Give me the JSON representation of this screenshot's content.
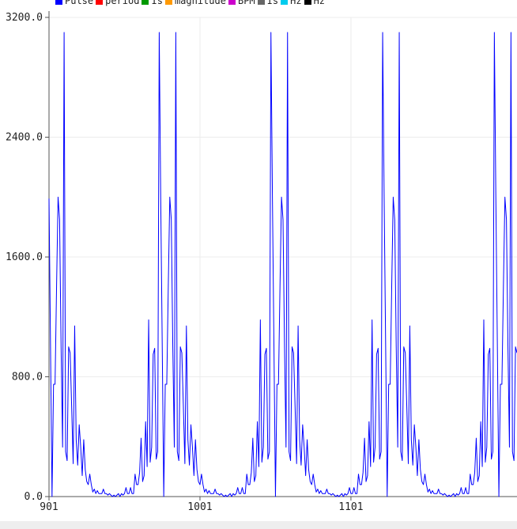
{
  "chart_data": {
    "type": "line",
    "title": "",
    "xlabel": "",
    "ylabel": "",
    "xlim": [
      901,
      1211
    ],
    "ylim": [
      0,
      3200
    ],
    "y_ticks": [
      {
        "value": 0,
        "label": "0.0"
      },
      {
        "value": 800,
        "label": "800.0"
      },
      {
        "value": 1600,
        "label": "1600.0"
      },
      {
        "value": 2400,
        "label": "2400.0"
      },
      {
        "value": 3200,
        "label": "3200.0"
      }
    ],
    "x_ticks": [
      {
        "value": 901,
        "label": "901"
      },
      {
        "value": 1001,
        "label": "1001"
      },
      {
        "value": 1101,
        "label": "1101"
      }
    ],
    "grid": true,
    "legend_position": "top-left",
    "legend": [
      {
        "name": "Pulse",
        "color": "#0000ff"
      },
      {
        "name": "period",
        "color": "#ff0000"
      },
      {
        "name": "Is",
        "color": "#009900"
      },
      {
        "name": "magnitude",
        "color": "#ff9900"
      },
      {
        "name": "BPM",
        "color": "#cc00cc"
      },
      {
        "name": "Is",
        "color": "#666666"
      },
      {
        "name": "Hz",
        "color": "#00ccee"
      },
      {
        "name": "Hz",
        "color": "#000000"
      }
    ],
    "period": 74,
    "series": [
      {
        "name": "Pulse",
        "color": "#0000ff",
        "x_start": 901,
        "values": [
          1990,
          1000,
          0,
          750,
          750,
          1400,
          2000,
          1850,
          1000,
          330,
          3100,
          300,
          240,
          1000,
          960,
          600,
          220,
          1140,
          380,
          210,
          480,
          330,
          140,
          380,
          180,
          100,
          80,
          150,
          80,
          30,
          50,
          20,
          40,
          20,
          20,
          20,
          50,
          20,
          20,
          10,
          20,
          10,
          0,
          10,
          0,
          10,
          20,
          0,
          20,
          10,
          20,
          60,
          20,
          20,
          60,
          20,
          20,
          150,
          80,
          80,
          160,
          390,
          100,
          140,
          500,
          200,
          1180,
          230,
          330,
          950,
          990,
          250,
          300,
          3100
        ]
      }
    ]
  }
}
